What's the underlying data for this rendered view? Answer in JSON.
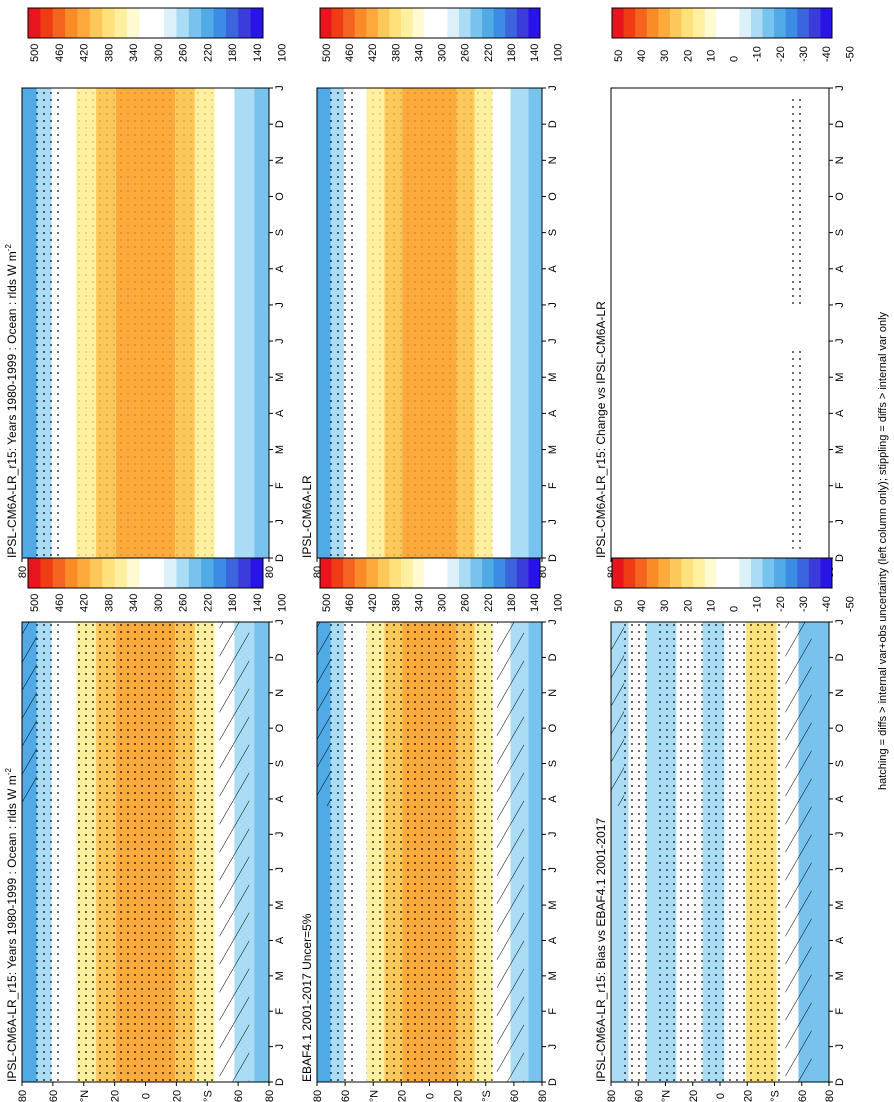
{
  "figure": {
    "footnote": "hatching = diffs > internal var+obs uncertainty (left column only); stippling = diffs > internal var only"
  },
  "lat_ticks": [
    "80",
    "60",
    "°N",
    "20",
    "0",
    "20",
    "°S",
    "60",
    "80"
  ],
  "month_ticks": [
    "D",
    "J",
    "F",
    "M",
    "A",
    "M",
    "J",
    "J",
    "A",
    "S",
    "O",
    "N",
    "D",
    "J"
  ],
  "colorbars": {
    "absolute": {
      "labels": [
        "500",
        "460",
        "420",
        "380",
        "340",
        "300",
        "260",
        "220",
        "180",
        "140",
        "100"
      ],
      "colors": [
        "#e8141e",
        "#f03c14",
        "#f5641e",
        "#fa8c28",
        "#fcaa3c",
        "#fdc85a",
        "#fee17a",
        "#fff0a0",
        "#fffad2",
        "#ffffff",
        "#ffffff",
        "#dcf0fa",
        "#aadcf5",
        "#78c3ee",
        "#50aae6",
        "#3c8ce6",
        "#3c64dc",
        "#3c3cdc",
        "#2814e6"
      ]
    },
    "difference": {
      "labels": [
        "50",
        "40",
        "30",
        "20",
        "10",
        "0",
        "-10",
        "-20",
        "-30",
        "-40",
        "-50"
      ],
      "colors": [
        "#e8141e",
        "#f03c14",
        "#f5641e",
        "#fa8c28",
        "#fcaa3c",
        "#fdc85a",
        "#fee17a",
        "#fff0a0",
        "#fffad2",
        "#ffffff",
        "#ffffff",
        "#dcf0fa",
        "#aadcf5",
        "#78c3ee",
        "#50aae6",
        "#3c8ce6",
        "#3c64dc",
        "#3c3cdc",
        "#2814e6"
      ]
    }
  },
  "colors": {
    "axis": "#000000",
    "background": "#ffffff"
  },
  "chart_data": [
    {
      "type": "heatmap",
      "title": "IPSL-CM6A-LR_r15: Years 1980-1999 : Ocean : rlds W m",
      "title_sup": "-2",
      "field": "rlds",
      "x_categories": [
        "D",
        "J",
        "F",
        "M",
        "A",
        "M",
        "J",
        "J",
        "A",
        "S",
        "O",
        "N",
        "D",
        "J"
      ],
      "y_ticks": [
        "80",
        "60",
        "°N",
        "20",
        "0",
        "20",
        "°S",
        "60",
        "80"
      ],
      "colorbar": "absolute",
      "hatching": true,
      "stippling": true
    },
    {
      "type": "heatmap",
      "title": "IPSL-CM6A-LR_r15: Years 1980-1999 : Ocean : rlds W m",
      "title_sup": "-2",
      "field": "rlds",
      "x_categories": [
        "D",
        "J",
        "F",
        "M",
        "A",
        "M",
        "J",
        "J",
        "A",
        "S",
        "O",
        "N",
        "D",
        "J"
      ],
      "y_ticks": [
        "80",
        "60",
        "°N",
        "20",
        "0",
        "20",
        "°S",
        "60",
        "80"
      ],
      "colorbar": "absolute",
      "hatching": false,
      "stippling": true
    },
    {
      "type": "heatmap",
      "title": "EBAF4.1 2001-2017 Uncer=5%",
      "title_sup": "",
      "field": "rlds",
      "x_categories": [
        "D",
        "J",
        "F",
        "M",
        "A",
        "M",
        "J",
        "J",
        "A",
        "S",
        "O",
        "N",
        "D",
        "J"
      ],
      "y_ticks": [
        "80",
        "60",
        "°N",
        "20",
        "0",
        "20",
        "°S",
        "60",
        "80"
      ],
      "colorbar": "absolute",
      "hatching": true,
      "stippling": true
    },
    {
      "type": "heatmap",
      "title": "IPSL-CM6A-LR",
      "title_sup": "",
      "field": "rlds",
      "x_categories": [
        "D",
        "J",
        "F",
        "M",
        "A",
        "M",
        "J",
        "J",
        "A",
        "S",
        "O",
        "N",
        "D",
        "J"
      ],
      "y_ticks": [
        "80",
        "60",
        "°N",
        "20",
        "0",
        "20",
        "°S",
        "60",
        "80"
      ],
      "colorbar": "absolute",
      "hatching": false,
      "stippling": true
    },
    {
      "type": "heatmap",
      "title": "IPSL-CM6A-LR_r15: Bias vs EBAF4.1 2001-2017",
      "title_sup": "",
      "field": "bias",
      "x_categories": [
        "D",
        "J",
        "F",
        "M",
        "A",
        "M",
        "J",
        "J",
        "A",
        "S",
        "O",
        "N",
        "D",
        "J"
      ],
      "y_ticks": [
        "80",
        "60",
        "°N",
        "20",
        "0",
        "20",
        "°S",
        "60",
        "80"
      ],
      "colorbar": "difference",
      "hatching": true,
      "stippling": true
    },
    {
      "type": "heatmap",
      "title": "IPSL-CM6A-LR_r15: Change vs IPSL-CM6A-LR",
      "title_sup": "",
      "field": "change",
      "x_categories": [
        "D",
        "J",
        "F",
        "M",
        "A",
        "M",
        "J",
        "J",
        "A",
        "S",
        "O",
        "N",
        "D",
        "J"
      ],
      "y_ticks": [
        "80",
        "60",
        "°N",
        "20",
        "0",
        "20",
        "°S",
        "60",
        "80"
      ],
      "colorbar": "difference",
      "hatching": false,
      "stippling": true
    }
  ]
}
